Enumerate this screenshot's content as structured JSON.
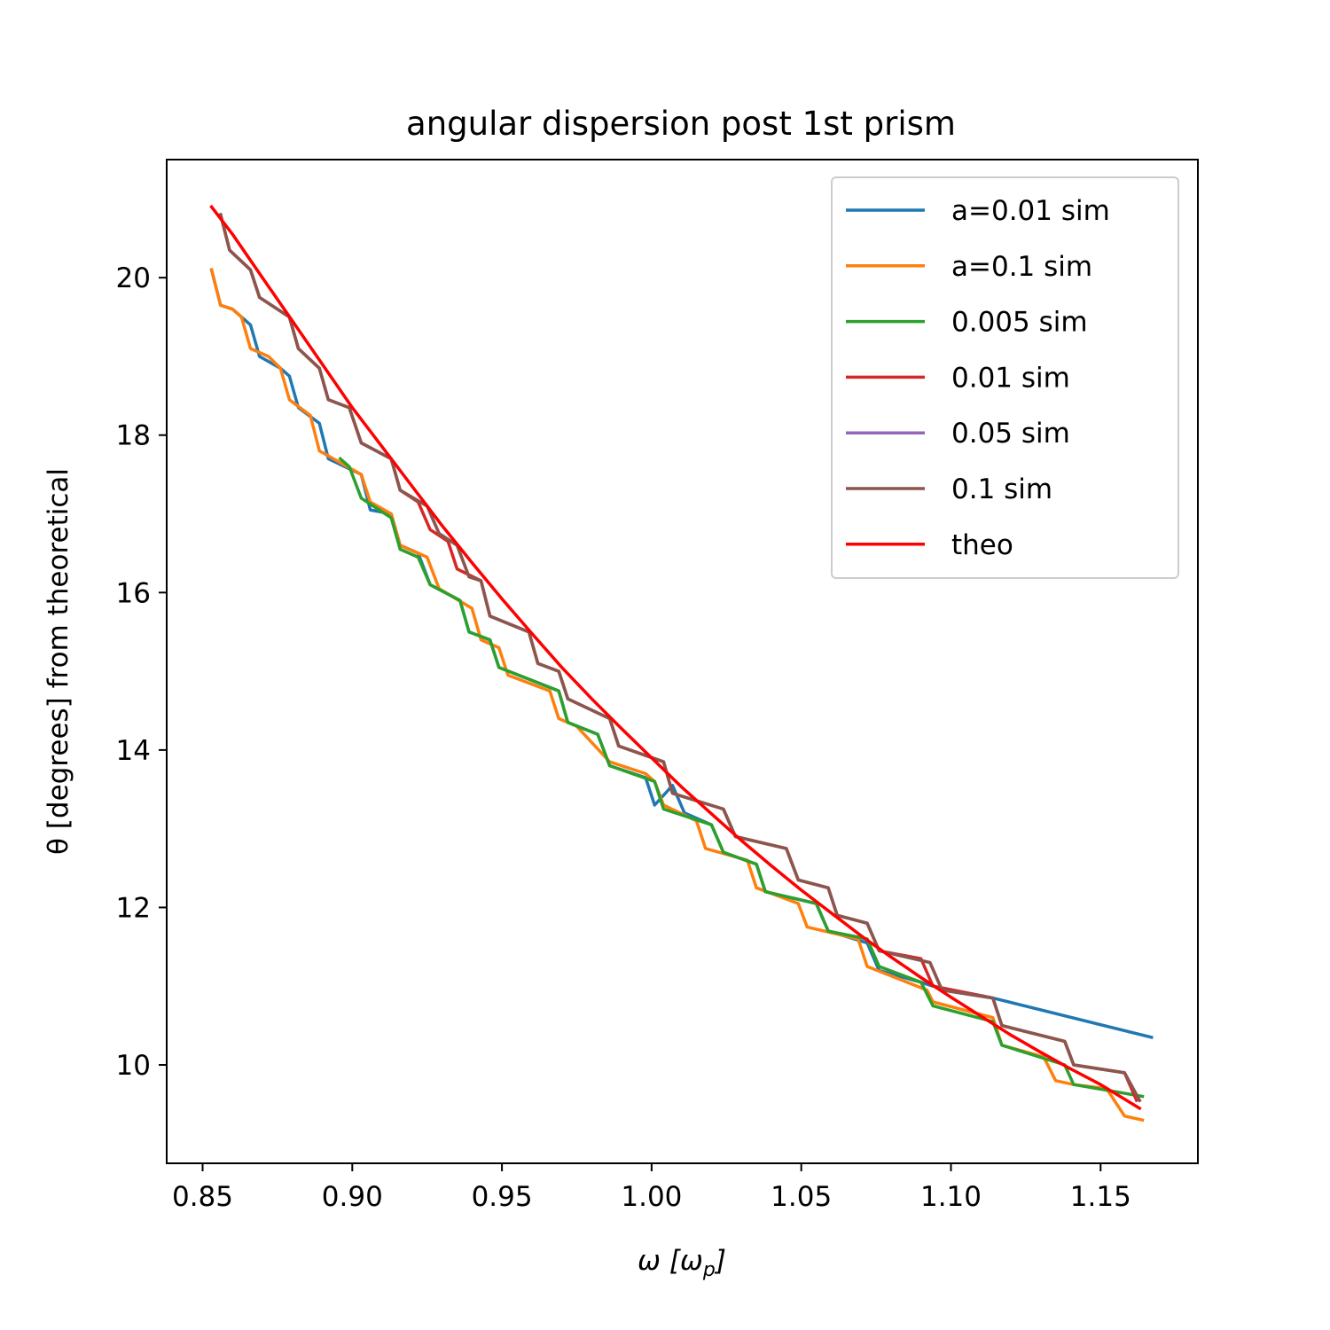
{
  "chart_data": {
    "type": "line",
    "title": "angular dispersion post 1st prism",
    "xlabel": "ω [ω_p]",
    "ylabel": "θ [degrees] from theoretical",
    "xlim": [
      0.838,
      1.1825
    ],
    "ylim": [
      8.75,
      21.5
    ],
    "xticks": [
      0.85,
      0.9,
      0.95,
      1.0,
      1.05,
      1.1,
      1.15
    ],
    "xtick_labels": [
      "0.85",
      "0.90",
      "0.95",
      "1.00",
      "1.05",
      "1.10",
      "1.15"
    ],
    "yticks": [
      10,
      12,
      14,
      16,
      18,
      20
    ],
    "ytick_labels": [
      "10",
      "12",
      "14",
      "16",
      "18",
      "20"
    ],
    "grid": false,
    "legend_position": "top-right",
    "colors": {
      "a001": "#1f77b4",
      "a01": "#ff7f0e",
      "s0005": "#2ca02c",
      "s001": "#d62728",
      "s005": "#9467bd",
      "s01": "#8c564b",
      "theo": "#ff0000"
    },
    "series": [
      {
        "name": "a=0.01 sim",
        "color": "#1f77b4",
        "points": [
          [
            0.853,
            20.1
          ],
          [
            0.856,
            19.65
          ],
          [
            0.86,
            19.6
          ],
          [
            0.863,
            19.5
          ],
          [
            0.866,
            19.4
          ],
          [
            0.869,
            19.0
          ],
          [
            0.876,
            18.85
          ],
          [
            0.879,
            18.75
          ],
          [
            0.882,
            18.35
          ],
          [
            0.889,
            18.15
          ],
          [
            0.892,
            17.7
          ],
          [
            0.903,
            17.5
          ],
          [
            0.906,
            17.05
          ],
          [
            0.913,
            17.0
          ],
          [
            0.916,
            16.6
          ],
          [
            0.922,
            16.5
          ],
          [
            0.926,
            16.1
          ],
          [
            0.936,
            15.9
          ],
          [
            0.939,
            15.5
          ],
          [
            0.946,
            15.4
          ],
          [
            0.949,
            15.05
          ],
          [
            0.969,
            14.75
          ],
          [
            0.972,
            14.35
          ],
          [
            0.982,
            14.2
          ],
          [
            0.986,
            13.8
          ],
          [
            0.998,
            13.65
          ],
          [
            1.001,
            13.3
          ],
          [
            1.007,
            13.55
          ],
          [
            1.011,
            13.2
          ],
          [
            1.02,
            13.05
          ],
          [
            1.024,
            12.7
          ],
          [
            1.035,
            12.55
          ],
          [
            1.038,
            12.2
          ],
          [
            1.055,
            12.05
          ],
          [
            1.059,
            11.7
          ],
          [
            1.072,
            11.55
          ],
          [
            1.076,
            11.2
          ],
          [
            1.09,
            11.05
          ],
          [
            1.094,
            11.0
          ],
          [
            1.114,
            10.85
          ],
          [
            1.167,
            10.35
          ]
        ]
      },
      {
        "name": "a=0.1 sim",
        "color": "#ff7f0e",
        "points": [
          [
            0.853,
            20.1
          ],
          [
            0.856,
            19.65
          ],
          [
            0.86,
            19.6
          ],
          [
            0.863,
            19.5
          ],
          [
            0.866,
            19.1
          ],
          [
            0.872,
            19.0
          ],
          [
            0.876,
            18.85
          ],
          [
            0.879,
            18.45
          ],
          [
            0.886,
            18.25
          ],
          [
            0.889,
            17.8
          ],
          [
            0.903,
            17.5
          ],
          [
            0.906,
            17.15
          ],
          [
            0.913,
            17.0
          ],
          [
            0.916,
            16.6
          ],
          [
            0.925,
            16.45
          ],
          [
            0.929,
            16.05
          ],
          [
            0.94,
            15.8
          ],
          [
            0.943,
            15.4
          ],
          [
            0.949,
            15.3
          ],
          [
            0.952,
            14.95
          ],
          [
            0.966,
            14.75
          ],
          [
            0.969,
            14.4
          ],
          [
            0.975,
            14.3
          ],
          [
            0.986,
            13.85
          ],
          [
            0.998,
            13.7
          ],
          [
            1.001,
            13.6
          ],
          [
            1.004,
            13.3
          ],
          [
            1.015,
            13.1
          ],
          [
            1.018,
            12.75
          ],
          [
            1.032,
            12.6
          ],
          [
            1.035,
            12.25
          ],
          [
            1.049,
            12.05
          ],
          [
            1.052,
            11.75
          ],
          [
            1.069,
            11.6
          ],
          [
            1.072,
            11.25
          ],
          [
            1.092,
            10.95
          ],
          [
            1.094,
            10.8
          ],
          [
            1.114,
            10.6
          ],
          [
            1.117,
            10.25
          ],
          [
            1.131,
            10.1
          ],
          [
            1.135,
            9.8
          ],
          [
            1.141,
            9.75
          ],
          [
            1.152,
            9.7
          ],
          [
            1.158,
            9.35
          ],
          [
            1.164,
            9.3
          ]
        ]
      },
      {
        "name": "0.005 sim",
        "color": "#2ca02c",
        "points": [
          [
            0.896,
            17.7
          ],
          [
            0.899,
            17.6
          ],
          [
            0.903,
            17.2
          ],
          [
            0.913,
            16.95
          ],
          [
            0.916,
            16.55
          ],
          [
            0.922,
            16.45
          ],
          [
            0.926,
            16.1
          ],
          [
            0.936,
            15.9
          ],
          [
            0.939,
            15.5
          ],
          [
            0.946,
            15.4
          ],
          [
            0.949,
            15.05
          ],
          [
            0.969,
            14.75
          ],
          [
            0.972,
            14.35
          ],
          [
            0.982,
            14.2
          ],
          [
            0.986,
            13.8
          ],
          [
            1.001,
            13.6
          ],
          [
            1.004,
            13.25
          ],
          [
            1.02,
            13.05
          ],
          [
            1.024,
            12.7
          ],
          [
            1.035,
            12.55
          ],
          [
            1.038,
            12.2
          ],
          [
            1.055,
            12.05
          ],
          [
            1.059,
            11.7
          ],
          [
            1.072,
            11.6
          ],
          [
            1.076,
            11.25
          ],
          [
            1.09,
            11.05
          ],
          [
            1.094,
            10.75
          ],
          [
            1.114,
            10.55
          ],
          [
            1.117,
            10.25
          ],
          [
            1.138,
            10.0
          ],
          [
            1.141,
            9.75
          ],
          [
            1.164,
            9.6
          ]
        ]
      },
      {
        "name": "0.01 sim",
        "color": "#d62728",
        "points": [
          [
            0.856,
            20.8
          ],
          [
            0.859,
            20.35
          ],
          [
            0.866,
            20.1
          ],
          [
            0.869,
            19.75
          ],
          [
            0.879,
            19.5
          ],
          [
            0.882,
            19.1
          ],
          [
            0.889,
            18.85
          ],
          [
            0.892,
            18.45
          ],
          [
            0.899,
            18.35
          ],
          [
            0.903,
            17.9
          ],
          [
            0.913,
            17.7
          ],
          [
            0.916,
            17.3
          ],
          [
            0.922,
            17.15
          ],
          [
            0.926,
            16.8
          ],
          [
            0.932,
            16.65
          ],
          [
            0.935,
            16.3
          ],
          [
            0.943,
            16.15
          ],
          [
            0.946,
            15.7
          ],
          [
            0.959,
            15.5
          ],
          [
            0.962,
            15.1
          ],
          [
            0.969,
            15.0
          ],
          [
            0.972,
            14.65
          ],
          [
            0.986,
            14.4
          ],
          [
            0.989,
            14.05
          ],
          [
            1.004,
            13.85
          ],
          [
            1.007,
            13.45
          ],
          [
            1.024,
            13.25
          ],
          [
            1.028,
            12.9
          ],
          [
            1.045,
            12.75
          ],
          [
            1.049,
            12.35
          ],
          [
            1.059,
            12.25
          ],
          [
            1.062,
            11.9
          ],
          [
            1.072,
            11.8
          ],
          [
            1.076,
            11.45
          ],
          [
            1.09,
            11.35
          ],
          [
            1.094,
            11.0
          ],
          [
            1.114,
            10.85
          ],
          [
            1.117,
            10.5
          ],
          [
            1.138,
            10.3
          ],
          [
            1.141,
            10.0
          ],
          [
            1.158,
            9.9
          ],
          [
            1.162,
            9.55
          ]
        ]
      },
      {
        "name": "0.05 sim",
        "color": "#9467bd",
        "points": [
          [
            0.856,
            20.8
          ],
          [
            0.859,
            20.35
          ],
          [
            0.866,
            20.1
          ],
          [
            0.869,
            19.75
          ],
          [
            0.879,
            19.5
          ],
          [
            0.882,
            19.1
          ],
          [
            0.889,
            18.85
          ],
          [
            0.892,
            18.45
          ],
          [
            0.899,
            18.35
          ],
          [
            0.903,
            17.9
          ],
          [
            0.913,
            17.7
          ],
          [
            0.916,
            17.3
          ],
          [
            0.925,
            17.1
          ],
          [
            0.929,
            16.75
          ],
          [
            0.935,
            16.6
          ],
          [
            0.939,
            16.2
          ],
          [
            0.943,
            16.15
          ],
          [
            0.946,
            15.7
          ],
          [
            0.959,
            15.5
          ],
          [
            0.962,
            15.1
          ],
          [
            0.969,
            15.0
          ],
          [
            0.972,
            14.65
          ],
          [
            0.986,
            14.4
          ],
          [
            0.989,
            14.05
          ],
          [
            1.004,
            13.85
          ],
          [
            1.007,
            13.45
          ],
          [
            1.024,
            13.25
          ],
          [
            1.028,
            12.9
          ],
          [
            1.045,
            12.75
          ],
          [
            1.049,
            12.35
          ],
          [
            1.059,
            12.25
          ],
          [
            1.062,
            11.9
          ],
          [
            1.072,
            11.8
          ],
          [
            1.076,
            11.45
          ],
          [
            1.093,
            11.3
          ],
          [
            1.097,
            10.95
          ],
          [
            1.114,
            10.85
          ],
          [
            1.117,
            10.5
          ],
          [
            1.138,
            10.3
          ],
          [
            1.141,
            10.0
          ],
          [
            1.158,
            9.9
          ],
          [
            1.163,
            9.55
          ]
        ]
      },
      {
        "name": "0.1 sim",
        "color": "#8c564b",
        "points": [
          [
            0.856,
            20.8
          ],
          [
            0.859,
            20.35
          ],
          [
            0.866,
            20.1
          ],
          [
            0.869,
            19.75
          ],
          [
            0.879,
            19.5
          ],
          [
            0.882,
            19.1
          ],
          [
            0.889,
            18.85
          ],
          [
            0.892,
            18.45
          ],
          [
            0.899,
            18.35
          ],
          [
            0.903,
            17.9
          ],
          [
            0.913,
            17.7
          ],
          [
            0.916,
            17.3
          ],
          [
            0.925,
            17.1
          ],
          [
            0.929,
            16.75
          ],
          [
            0.935,
            16.6
          ],
          [
            0.939,
            16.2
          ],
          [
            0.943,
            16.15
          ],
          [
            0.946,
            15.7
          ],
          [
            0.959,
            15.5
          ],
          [
            0.962,
            15.1
          ],
          [
            0.969,
            15.0
          ],
          [
            0.972,
            14.65
          ],
          [
            0.986,
            14.4
          ],
          [
            0.989,
            14.05
          ],
          [
            1.004,
            13.85
          ],
          [
            1.007,
            13.45
          ],
          [
            1.024,
            13.25
          ],
          [
            1.028,
            12.9
          ],
          [
            1.045,
            12.75
          ],
          [
            1.049,
            12.35
          ],
          [
            1.059,
            12.25
          ],
          [
            1.062,
            11.9
          ],
          [
            1.072,
            11.8
          ],
          [
            1.076,
            11.45
          ],
          [
            1.093,
            11.3
          ],
          [
            1.097,
            10.95
          ],
          [
            1.114,
            10.85
          ],
          [
            1.117,
            10.5
          ],
          [
            1.138,
            10.3
          ],
          [
            1.141,
            10.0
          ],
          [
            1.158,
            9.9
          ],
          [
            1.163,
            9.55
          ]
        ]
      },
      {
        "name": "theo",
        "color": "#ff0000",
        "points": [
          [
            0.853,
            20.9
          ],
          [
            0.86,
            20.55
          ],
          [
            0.87,
            20.0
          ],
          [
            0.88,
            19.45
          ],
          [
            0.89,
            18.9
          ],
          [
            0.9,
            18.35
          ],
          [
            0.91,
            17.85
          ],
          [
            0.92,
            17.35
          ],
          [
            0.93,
            16.85
          ],
          [
            0.94,
            16.38
          ],
          [
            0.95,
            15.92
          ],
          [
            0.96,
            15.48
          ],
          [
            0.97,
            15.05
          ],
          [
            0.98,
            14.65
          ],
          [
            0.99,
            14.27
          ],
          [
            1.0,
            13.9
          ],
          [
            1.01,
            13.53
          ],
          [
            1.02,
            13.19
          ],
          [
            1.03,
            12.85
          ],
          [
            1.04,
            12.53
          ],
          [
            1.05,
            12.22
          ],
          [
            1.06,
            11.93
          ],
          [
            1.07,
            11.64
          ],
          [
            1.08,
            11.37
          ],
          [
            1.09,
            11.11
          ],
          [
            1.1,
            10.86
          ],
          [
            1.11,
            10.62
          ],
          [
            1.12,
            10.38
          ],
          [
            1.13,
            10.16
          ],
          [
            1.14,
            9.95
          ],
          [
            1.15,
            9.75
          ],
          [
            1.163,
            9.45
          ]
        ]
      }
    ]
  }
}
